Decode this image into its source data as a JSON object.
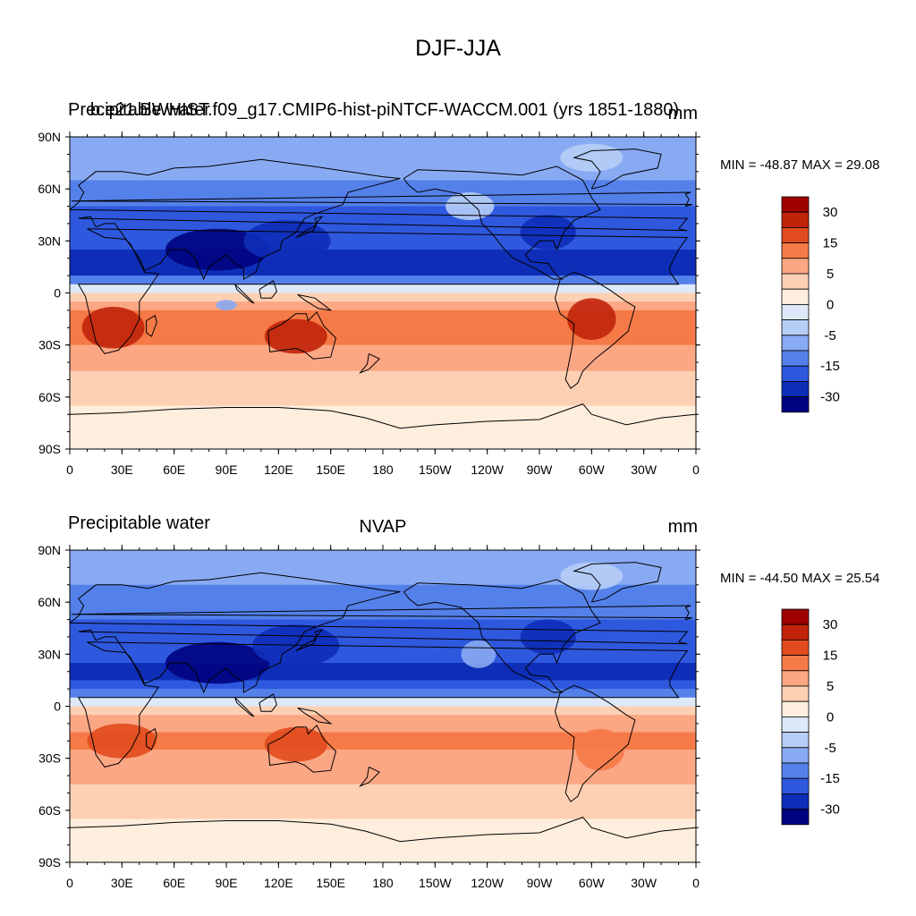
{
  "main_title": "DJF-JJA",
  "panels": [
    {
      "left_title": "Precipitable water",
      "center_title": "b.e21.BWHIST.f09_g17.CMIP6-hist-piNTCF-WACCM.001 (yrs 1851-1880)",
      "units": "mm",
      "min_max": "MIN = -48.87 MAX =  29.08"
    },
    {
      "left_title": "Precipitable water",
      "center_title": "NVAP",
      "units": "mm",
      "min_max": "MIN = -44.50 MAX =  25.54"
    }
  ],
  "lat_ticks": [
    "90N",
    "60N",
    "30N",
    "0",
    "30S",
    "60S",
    "90S"
  ],
  "lon_ticks": [
    "0",
    "30E",
    "60E",
    "90E",
    "120E",
    "150E",
    "180",
    "150W",
    "120W",
    "90W",
    "60W",
    "30W",
    "0"
  ],
  "colorbar": {
    "colors": [
      "#9e0000",
      "#c1230a",
      "#e14b1d",
      "#f57a47",
      "#fba784",
      "#fdd0b4",
      "#fdeedd",
      "#dde9f9",
      "#b6cdf6",
      "#88aaf2",
      "#5480ea",
      "#2e58de",
      "#0e2eb8",
      "#00037f"
    ],
    "labels": [
      "30",
      "15",
      "5",
      "0",
      "-5",
      "-15",
      "-30"
    ]
  },
  "chart_data": [
    {
      "type": "heatmap",
      "title": "DJF-JJA",
      "left_title": "Precipitable water",
      "center_title": "b.e21.BWHIST.f09_g17.CMIP6-hist-piNTCF-WACCM.001 (yrs 1851-1880)",
      "units": "mm",
      "x_ticks": [
        "0",
        "30E",
        "60E",
        "90E",
        "120E",
        "150E",
        "180",
        "150W",
        "120W",
        "90W",
        "60W",
        "30W",
        "0"
      ],
      "y_ticks": [
        "90N",
        "60N",
        "30N",
        "0",
        "30S",
        "60S",
        "90S"
      ],
      "min": -48.87,
      "max": 29.08,
      "levels": [
        -40,
        -30,
        -20,
        -15,
        -10,
        -5,
        -2,
        0,
        2,
        5,
        10,
        15,
        20,
        30,
        40
      ],
      "zonal_mean_profile": [
        {
          "lat": 85,
          "value": -6
        },
        {
          "lat": 70,
          "value": -9
        },
        {
          "lat": 55,
          "value": -14
        },
        {
          "lat": 40,
          "value": -17
        },
        {
          "lat": 25,
          "value": -20
        },
        {
          "lat": 15,
          "value": -27
        },
        {
          "lat": 8,
          "value": -12
        },
        {
          "lat": 2,
          "value": 1
        },
        {
          "lat": -5,
          "value": 7
        },
        {
          "lat": -15,
          "value": 12
        },
        {
          "lat": -25,
          "value": 11
        },
        {
          "lat": -35,
          "value": 7
        },
        {
          "lat": -50,
          "value": 4
        },
        {
          "lat": -65,
          "value": 2
        },
        {
          "lat": -80,
          "value": 1
        }
      ]
    },
    {
      "type": "heatmap",
      "title": "DJF-JJA",
      "left_title": "Precipitable water",
      "center_title": "NVAP",
      "units": "mm",
      "x_ticks": [
        "0",
        "30E",
        "60E",
        "90E",
        "120E",
        "150E",
        "180",
        "150W",
        "120W",
        "90W",
        "60W",
        "30W",
        "0"
      ],
      "y_ticks": [
        "90N",
        "60N",
        "30N",
        "0",
        "30S",
        "60S",
        "90S"
      ],
      "min": -44.5,
      "max": 25.54,
      "levels": [
        -40,
        -30,
        -20,
        -15,
        -10,
        -5,
        -2,
        0,
        2,
        5,
        10,
        15,
        20,
        30,
        40
      ],
      "zonal_mean_profile": [
        {
          "lat": 85,
          "value": -6
        },
        {
          "lat": 70,
          "value": -10
        },
        {
          "lat": 55,
          "value": -14
        },
        {
          "lat": 40,
          "value": -18
        },
        {
          "lat": 25,
          "value": -20
        },
        {
          "lat": 15,
          "value": -22
        },
        {
          "lat": 8,
          "value": -12
        },
        {
          "lat": 2,
          "value": 1
        },
        {
          "lat": -5,
          "value": 6
        },
        {
          "lat": -15,
          "value": 10
        },
        {
          "lat": -25,
          "value": 10
        },
        {
          "lat": -35,
          "value": 6
        },
        {
          "lat": -50,
          "value": 4
        },
        {
          "lat": -65,
          "value": 2
        },
        {
          "lat": -80,
          "value": 1
        }
      ]
    }
  ]
}
